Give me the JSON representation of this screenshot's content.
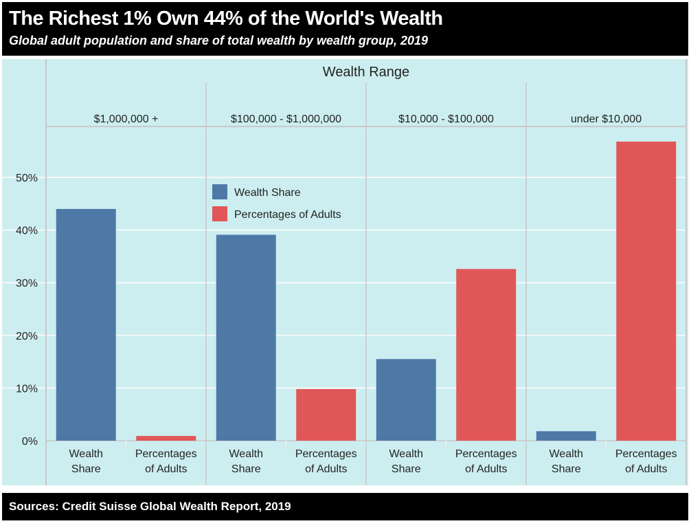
{
  "header": {
    "title": "The Richest 1% Own 44% of the World's Wealth",
    "subtitle": "Global adult population and share of total wealth by wealth group, 2019"
  },
  "footer": {
    "source": "Sources: Credit Suisse Global Wealth Report, 2019"
  },
  "chart_data": {
    "type": "bar",
    "title": "The Richest 1% Own 44% of the World's Wealth",
    "subtitle": "Global adult population and share of total wealth by wealth group, 2019",
    "column_header": "Wealth Range",
    "groups": [
      "$1,000,000 +",
      "$100,000 - $1,000,000",
      "$10,000 - $100,000",
      "under $10,000"
    ],
    "bar_labels": [
      [
        "Wealth",
        "Share"
      ],
      [
        "Percentages",
        "of Adults"
      ]
    ],
    "series": [
      {
        "name": "Wealth Share",
        "color": "#4e79a7",
        "values": [
          44.0,
          39.1,
          15.5,
          1.8
        ]
      },
      {
        "name": "Percentages of Adults",
        "color": "#e15759",
        "values": [
          0.9,
          9.8,
          32.6,
          56.8
        ]
      }
    ],
    "legend": [
      "Wealth Share",
      "Percentages of Adults"
    ],
    "legend_position": "top-center",
    "yticks": [
      "0%",
      "10%",
      "20%",
      "30%",
      "40%",
      "50%"
    ],
    "ytick_values": [
      0,
      10,
      20,
      30,
      40,
      50
    ],
    "ylim": [
      0,
      57
    ],
    "grid": true,
    "xlabel": "",
    "ylabel": ""
  }
}
